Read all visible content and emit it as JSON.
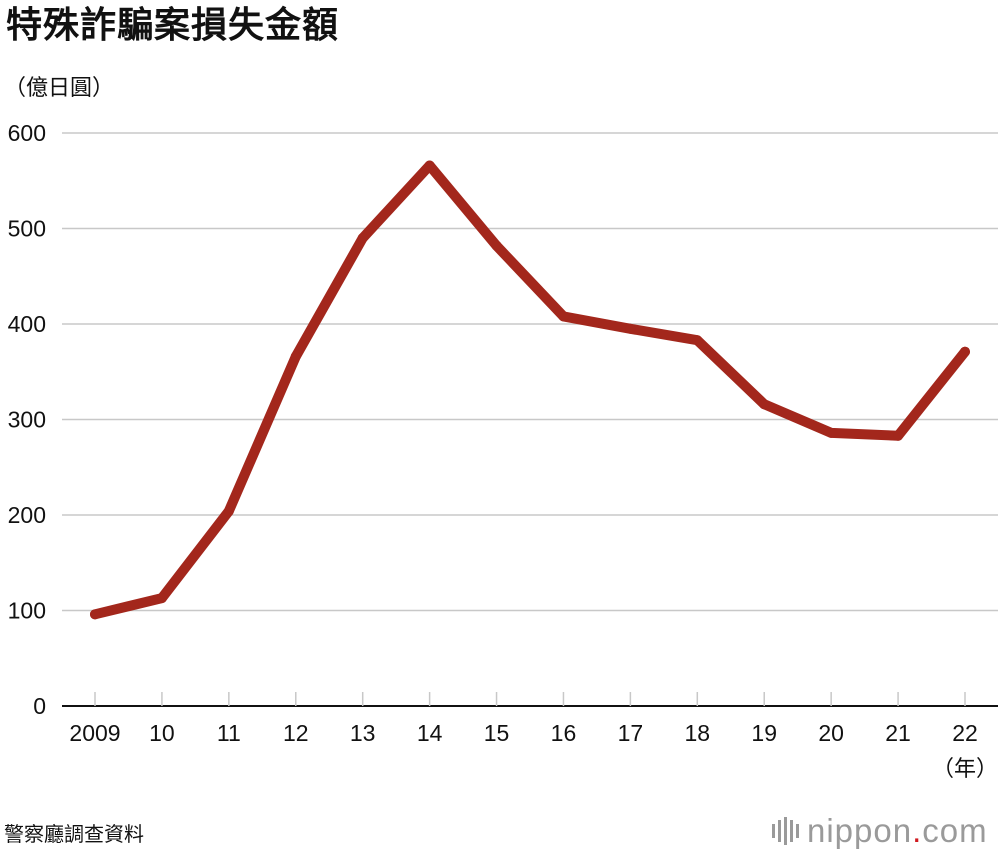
{
  "colors": {
    "line": "#a3271c",
    "grid": "#c8c8c8",
    "axis": "#111111",
    "brand_gray": "#9a9a9a",
    "brand_red": "#d0191f"
  },
  "chart_data": {
    "type": "line",
    "title": "特殊詐騙案損失金額",
    "ylabel": "（億日圓）",
    "xlabel": "（年）",
    "x": [
      2009,
      2010,
      2011,
      2012,
      2013,
      2014,
      2015,
      2016,
      2017,
      2018,
      2019,
      2020,
      2021,
      2022
    ],
    "x_tick_labels": [
      "2009",
      "10",
      "11",
      "12",
      "13",
      "14",
      "15",
      "16",
      "17",
      "18",
      "19",
      "20",
      "21",
      "22"
    ],
    "y_ticks": [
      0,
      100,
      200,
      300,
      400,
      500,
      600
    ],
    "y_tick_labels": [
      "0",
      "100",
      "200",
      "300",
      "400",
      "500",
      "600"
    ],
    "ylim": [
      0,
      600
    ],
    "grid": true,
    "series": [
      {
        "values": [
          96,
          113,
          204,
          366,
          490,
          566,
          482,
          408,
          395,
          383,
          316,
          286,
          283,
          371
        ]
      }
    ]
  },
  "footer": {
    "source": "警察廳調查資料",
    "brand_main": "nippon",
    "brand_dot": ".",
    "brand_tld": "com"
  }
}
